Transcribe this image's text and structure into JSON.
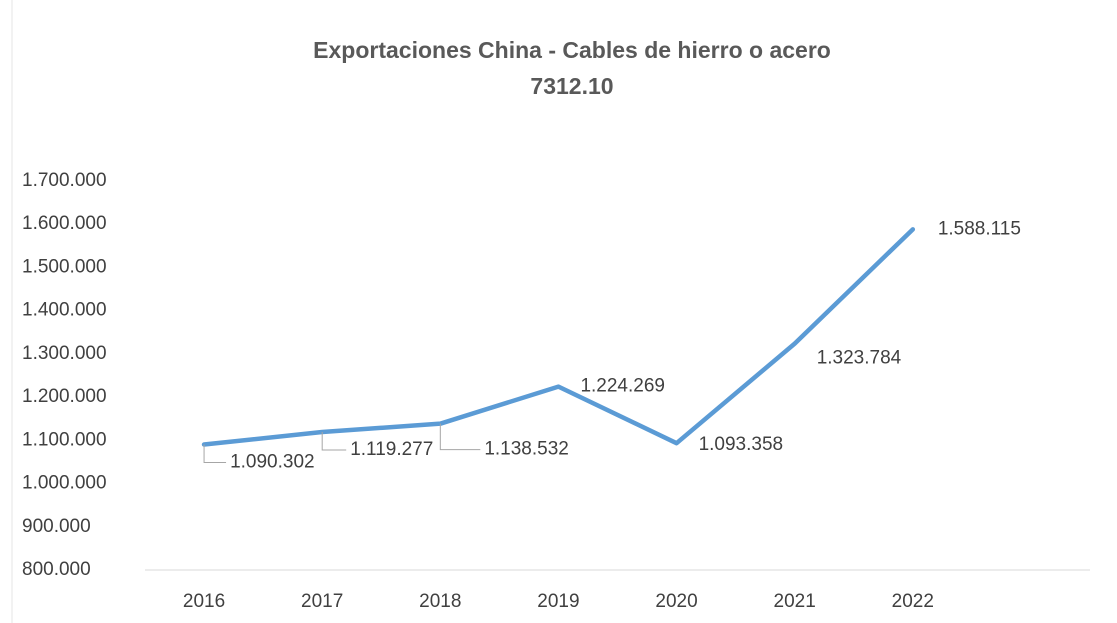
{
  "chart_data": {
    "type": "line",
    "title": "Exportaciones China - Cables de hierro o acero",
    "subtitle": "7312.10",
    "categories": [
      "2016",
      "2017",
      "2018",
      "2019",
      "2020",
      "2021",
      "2022",
      null
    ],
    "series": [
      {
        "name": null,
        "color": "#5b9bd5",
        "values": [
          1090302,
          1119277,
          1138532,
          1224269,
          1093358,
          1323784,
          1588115,
          null
        ],
        "value_labels": [
          "1.090.302",
          "1.119.277",
          "1.138.532",
          "1.224.269",
          "1.093.358",
          "1.323.784",
          "1.588.115",
          null
        ]
      }
    ],
    "ylim": [
      800000,
      1700000
    ],
    "yticks": [
      {
        "value": 800000,
        "label": "800.000"
      },
      {
        "value": 900000,
        "label": "900.000"
      },
      {
        "value": 1000000,
        "label": "1.000.000"
      },
      {
        "value": 1100000,
        "label": "1.100.000"
      },
      {
        "value": 1200000,
        "label": "1.200.000"
      },
      {
        "value": 1300000,
        "label": "1.300.000"
      },
      {
        "value": 1400000,
        "label": "1.400.000"
      },
      {
        "value": 1500000,
        "label": "1.500.000"
      },
      {
        "value": 1600000,
        "label": "1.600.000"
      },
      {
        "value": 1700000,
        "label": "1.700.000"
      }
    ],
    "grid": false
  }
}
